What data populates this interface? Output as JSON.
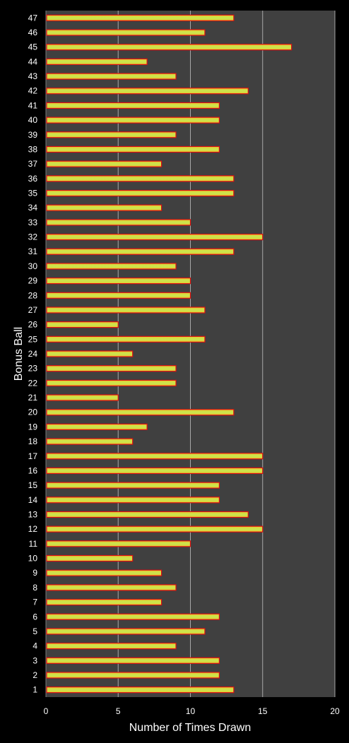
{
  "chart_data": {
    "type": "bar",
    "orientation": "horizontal",
    "xlabel": "Number of Times Drawn",
    "ylabel": "Bonus Ball",
    "xlim": [
      0,
      20
    ],
    "x_ticks": [
      0,
      5,
      10,
      15,
      20
    ],
    "grid": "vertical",
    "legend": "none",
    "categories": [
      "1",
      "2",
      "3",
      "4",
      "5",
      "6",
      "7",
      "8",
      "9",
      "10",
      "11",
      "12",
      "13",
      "14",
      "15",
      "16",
      "17",
      "18",
      "19",
      "20",
      "21",
      "22",
      "23",
      "24",
      "25",
      "26",
      "27",
      "28",
      "29",
      "30",
      "31",
      "32",
      "33",
      "34",
      "35",
      "36",
      "37",
      "38",
      "39",
      "40",
      "41",
      "42",
      "43",
      "44",
      "45",
      "46",
      "47"
    ],
    "values": [
      13,
      12,
      12,
      9,
      11,
      12,
      8,
      9,
      8,
      6,
      10,
      15,
      14,
      12,
      12,
      15,
      15,
      6,
      7,
      13,
      5,
      9,
      9,
      6,
      11,
      5,
      11,
      10,
      10,
      9,
      13,
      15,
      10,
      8,
      13,
      13,
      8,
      12,
      9,
      12,
      12,
      14,
      9,
      7,
      17,
      11,
      13
    ],
    "colors": {
      "page_background": "#000000",
      "plot_background": "#404040",
      "gridline": "#a8a8a8",
      "bar_border": "#e01010",
      "bar_fill_center": "#c8e850",
      "bar_fill_edge": "#e8c830",
      "text": "#ffffff"
    }
  }
}
